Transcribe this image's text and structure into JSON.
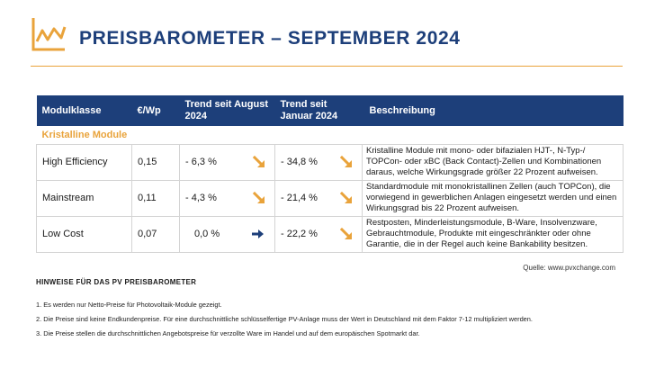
{
  "header": {
    "title": "PREISBAROMETER – SEPTEMBER 2024",
    "logo_icon": "trend-chart-icon",
    "accent_color": "#e9a33b",
    "brand_color": "#1d3f7a"
  },
  "table": {
    "columns": [
      "Modulklasse",
      "€/Wp",
      "Trend seit August 2024",
      "Trend seit Januar 2024",
      "Beschreibung"
    ],
    "group_label": "Kristalline Module",
    "rows": [
      {
        "modulklasse": "High Efficiency",
        "preis": "0,15",
        "trend_august": "- 6,3 %",
        "trend_august_icon": "arrow-down-right-icon",
        "trend_januar": "- 34,8 %",
        "trend_januar_icon": "arrow-down-right-icon",
        "beschreibung": "Kristalline Module mit mono- oder bifazialen HJT-, N-Typ-/ TOPCon- oder xBC (Back Contact)-Zellen und Kombinationen daraus, welche Wirkungsgrade größer 22 Prozent aufweisen."
      },
      {
        "modulklasse": "Mainstream",
        "preis": "0,11",
        "trend_august": "- 4,3 %",
        "trend_august_icon": "arrow-down-right-icon",
        "trend_januar": "- 21,4 %",
        "trend_januar_icon": "arrow-down-right-icon",
        "beschreibung": "Standardmodule mit monokristallinen Zellen (auch TOPCon), die vorwiegend in gewerblichen Anlagen eingesetzt werden und einen Wirkungsgrad bis 22 Prozent aufweisen."
      },
      {
        "modulklasse": "Low Cost",
        "preis": "0,07",
        "trend_august": "0,0 %",
        "trend_august_icon": "arrow-right-icon",
        "trend_januar": "- 22,2 %",
        "trend_januar_icon": "arrow-down-right-icon",
        "beschreibung": "Restposten, Minderleistungsmodule, B-Ware, Insolvenzware, Gebrauchtmodule, Produkte mit eingeschränkter oder ohne Garantie, die in der Regel auch keine Bankability besitzen."
      }
    ]
  },
  "source": "Quelle: www.pvxchange.com",
  "notes": {
    "title": "HINWEISE FÜR DAS PV PREISBAROMETER",
    "items": [
      "1.  Es werden nur Netto-Preise für Photovoltaik-Module gezeigt.",
      "2. Die Preise sind keine Endkundenpreise. Für eine durchschnittliche schlüsselfertige PV-Anlage muss der Wert in Deutschland mit dem Faktor 7-12 multipliziert werden.",
      "3. Die Preise stellen die durchschnittlichen Angebotspreise für verzollte Ware im Handel und auf dem europäischen Spotmarkt dar."
    ]
  }
}
